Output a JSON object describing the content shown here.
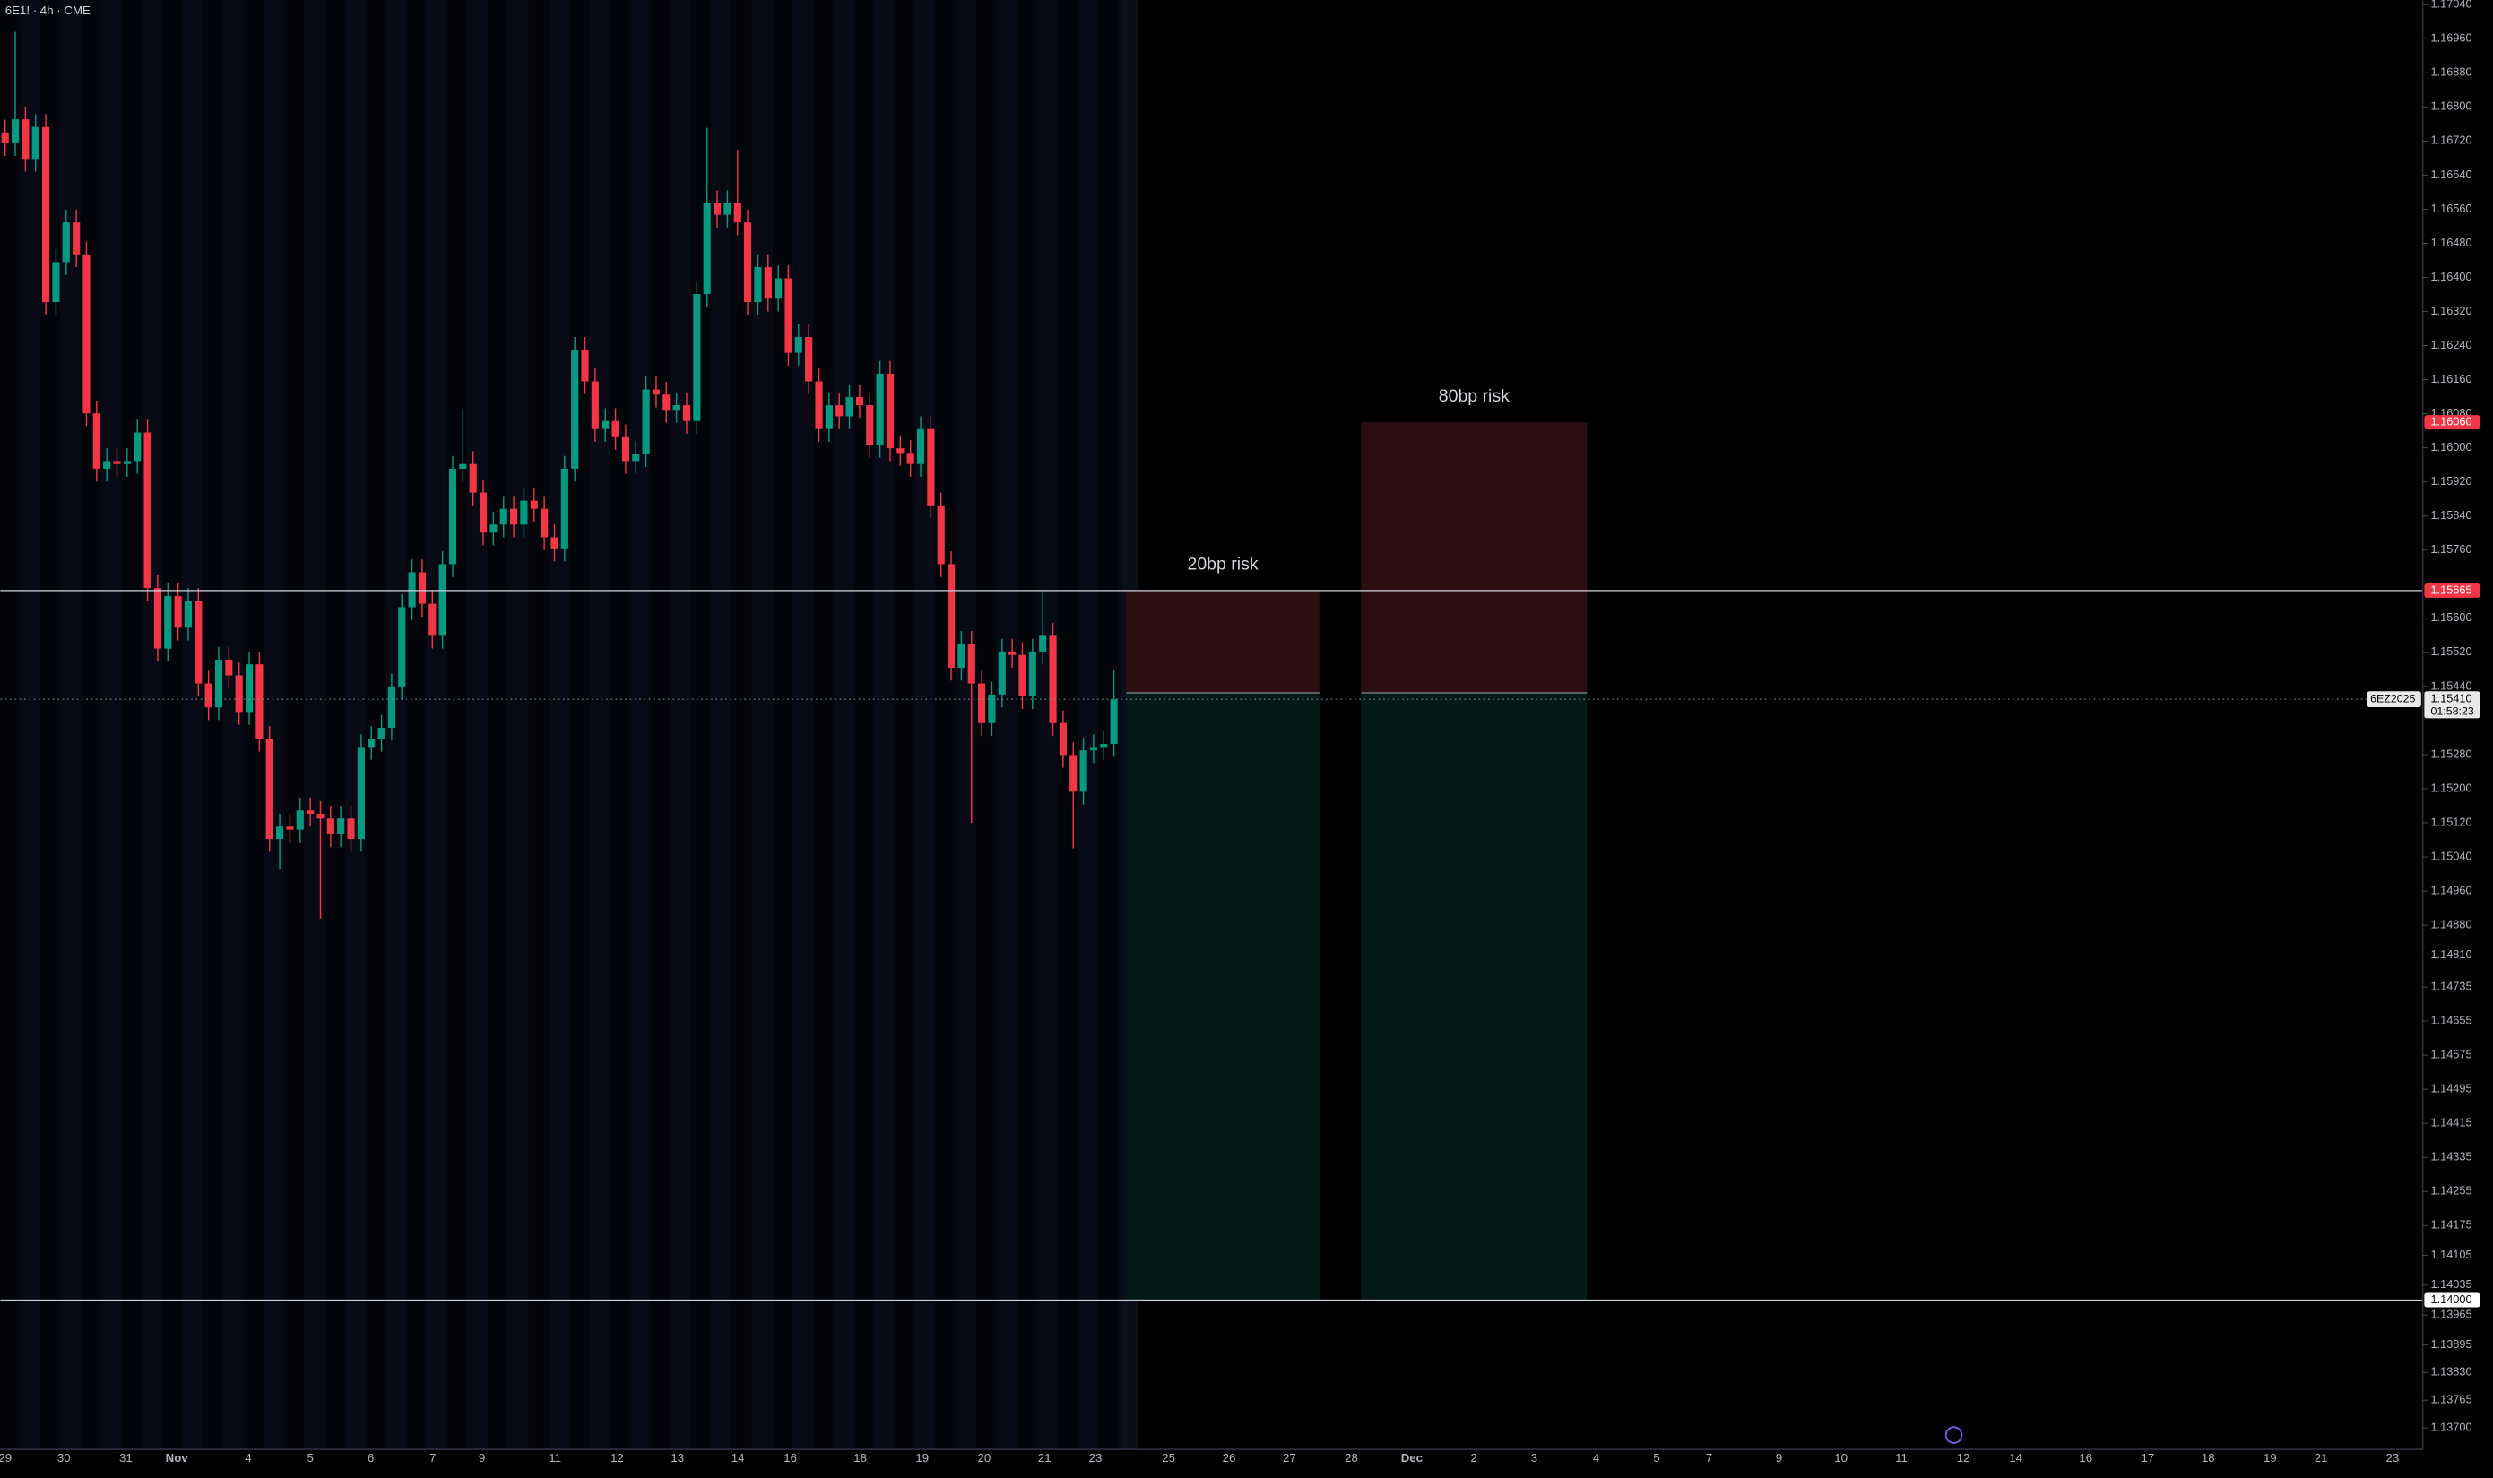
{
  "chart_data": {
    "type": "candlestick",
    "title": "6E1! · 4h · CME",
    "up_color": "#089981",
    "down_color": "#f23645",
    "ylim": [
      1.13657,
      1.17051
    ],
    "yticks": [
      {
        "value": 1.1704,
        "label": "1.17040"
      },
      {
        "value": 1.1696,
        "label": "1.16960"
      },
      {
        "value": 1.1688,
        "label": "1.16880"
      },
      {
        "value": 1.168,
        "label": "1.16800"
      },
      {
        "value": 1.1672,
        "label": "1.16720"
      },
      {
        "value": 1.1664,
        "label": "1.16640"
      },
      {
        "value": 1.1656,
        "label": "1.16560"
      },
      {
        "value": 1.1648,
        "label": "1.16480"
      },
      {
        "value": 1.164,
        "label": "1.16400"
      },
      {
        "value": 1.1632,
        "label": "1.16320"
      },
      {
        "value": 1.1624,
        "label": "1.16240"
      },
      {
        "value": 1.1616,
        "label": "1.16160"
      },
      {
        "value": 1.1608,
        "label": "1.16080"
      },
      {
        "value": 1.16,
        "label": "1.16000"
      },
      {
        "value": 1.1592,
        "label": "1.15920"
      },
      {
        "value": 1.1584,
        "label": "1.15840"
      },
      {
        "value": 1.1576,
        "label": "1.15760"
      },
      {
        "value": 1.156,
        "label": "1.15600"
      },
      {
        "value": 1.1552,
        "label": "1.15520"
      },
      {
        "value": 1.1544,
        "label": "1.15440"
      },
      {
        "value": 1.1528,
        "label": "1.15280"
      },
      {
        "value": 1.152,
        "label": "1.15200"
      },
      {
        "value": 1.1512,
        "label": "1.15120"
      },
      {
        "value": 1.1504,
        "label": "1.15040"
      },
      {
        "value": 1.1496,
        "label": "1.14960"
      },
      {
        "value": 1.1488,
        "label": "1.14880"
      },
      {
        "value": 1.1481,
        "label": "1.14810"
      },
      {
        "value": 1.14735,
        "label": "1.14735"
      },
      {
        "value": 1.14655,
        "label": "1.14655"
      },
      {
        "value": 1.14575,
        "label": "1.14575"
      },
      {
        "value": 1.14495,
        "label": "1.14495"
      },
      {
        "value": 1.14415,
        "label": "1.14415"
      },
      {
        "value": 1.14335,
        "label": "1.14335"
      },
      {
        "value": 1.14255,
        "label": "1.14255"
      },
      {
        "value": 1.14175,
        "label": "1.14175"
      },
      {
        "value": 1.14105,
        "label": "1.14105"
      },
      {
        "value": 1.14035,
        "label": "1.14035"
      },
      {
        "value": 1.13965,
        "label": "1.13965"
      },
      {
        "value": 1.13895,
        "label": "1.13895"
      },
      {
        "value": 1.1383,
        "label": "1.13830"
      },
      {
        "value": 1.13765,
        "label": "1.13765"
      },
      {
        "value": 1.137,
        "label": "1.13700"
      }
    ],
    "x_labels": [
      "29",
      "30",
      "31",
      "Nov",
      "4",
      "5",
      "6",
      "7",
      "9",
      "11",
      "12",
      "13",
      "14",
      "16",
      "18",
      "19",
      "20",
      "21",
      "23",
      "25",
      "26",
      "27",
      "28",
      "Dec",
      "2",
      "3",
      "4",
      "5",
      "7",
      "9",
      "10",
      "11",
      "12",
      "14",
      "16",
      "17",
      "18",
      "19",
      "21",
      "23"
    ],
    "candles": [
      [
        1.1674,
        1.1677,
        1.16685,
        1.16715
      ],
      [
        1.16715,
        1.16976,
        1.16685,
        1.16771
      ],
      [
        1.16771,
        1.16801,
        1.16648,
        1.16678
      ],
      [
        1.16678,
        1.16783,
        1.16648,
        1.16753
      ],
      [
        1.16753,
        1.16783,
        1.16312,
        1.16342
      ],
      [
        1.16342,
        1.16466,
        1.16312,
        1.16436
      ],
      [
        1.16436,
        1.16559,
        1.16406,
        1.16529
      ],
      [
        1.16529,
        1.16559,
        1.16424,
        1.16454
      ],
      [
        1.16454,
        1.16484,
        1.16051,
        1.16081
      ],
      [
        1.16081,
        1.16111,
        1.15921,
        1.15951
      ],
      [
        1.15951,
        1.15999,
        1.15921,
        1.15969
      ],
      [
        1.15969,
        1.15999,
        1.15932,
        1.15962
      ],
      [
        1.15962,
        1.15999,
        1.15932,
        1.15969
      ],
      [
        1.15969,
        1.16066,
        1.15939,
        1.16036
      ],
      [
        1.16036,
        1.16066,
        1.15641,
        1.15671
      ],
      [
        1.15671,
        1.15701,
        1.15499,
        1.15529
      ],
      [
        1.15529,
        1.15682,
        1.15499,
        1.15652
      ],
      [
        1.15652,
        1.15682,
        1.15548,
        1.15578
      ],
      [
        1.15578,
        1.15671,
        1.15548,
        1.15641
      ],
      [
        1.15641,
        1.15671,
        1.15417,
        1.15447
      ],
      [
        1.15447,
        1.15477,
        1.15361,
        1.15391
      ],
      [
        1.15391,
        1.15533,
        1.15361,
        1.15503
      ],
      [
        1.15503,
        1.15533,
        1.15436,
        1.15466
      ],
      [
        1.15466,
        1.15496,
        1.1535,
        1.1538
      ],
      [
        1.1538,
        1.15522,
        1.1535,
        1.15492
      ],
      [
        1.15492,
        1.15522,
        1.15287,
        1.15317
      ],
      [
        1.15317,
        1.15347,
        1.15052,
        1.15082
      ],
      [
        1.15082,
        1.15141,
        1.15012,
        1.15111
      ],
      [
        1.15111,
        1.15141,
        1.15074,
        1.15104
      ],
      [
        1.15104,
        1.15179,
        1.15074,
        1.15149
      ],
      [
        1.15149,
        1.15179,
        1.15111,
        1.15141
      ],
      [
        1.15141,
        1.15171,
        1.14895,
        1.1513
      ],
      [
        1.1513,
        1.1516,
        1.15063,
        1.15093
      ],
      [
        1.15093,
        1.1516,
        1.15063,
        1.1513
      ],
      [
        1.1513,
        1.1516,
        1.15052,
        1.15082
      ],
      [
        1.15082,
        1.15328,
        1.15052,
        1.15298
      ],
      [
        1.15298,
        1.15347,
        1.15268,
        1.15317
      ],
      [
        1.15317,
        1.15373,
        1.15287,
        1.15343
      ],
      [
        1.15343,
        1.1547,
        1.15313,
        1.1544
      ],
      [
        1.1544,
        1.15656,
        1.1541,
        1.15626
      ],
      [
        1.15626,
        1.15738,
        1.15596,
        1.15708
      ],
      [
        1.15708,
        1.15738,
        1.15604,
        1.15634
      ],
      [
        1.15634,
        1.15664,
        1.15529,
        1.15559
      ],
      [
        1.15559,
        1.15757,
        1.15529,
        1.15727
      ],
      [
        1.15727,
        1.15981,
        1.15697,
        1.15951
      ],
      [
        1.15951,
        1.16092,
        1.15921,
        1.15962
      ],
      [
        1.15962,
        1.15992,
        1.15865,
        1.15895
      ],
      [
        1.15895,
        1.15925,
        1.15771,
        1.15801
      ],
      [
        1.15801,
        1.1585,
        1.15771,
        1.1582
      ],
      [
        1.1582,
        1.15887,
        1.1579,
        1.15857
      ],
      [
        1.15857,
        1.15887,
        1.1579,
        1.1582
      ],
      [
        1.1582,
        1.15906,
        1.1579,
        1.15876
      ],
      [
        1.15876,
        1.15906,
        1.15827,
        1.15857
      ],
      [
        1.15857,
        1.15887,
        1.1576,
        1.1579
      ],
      [
        1.1579,
        1.1582,
        1.15734,
        1.15764
      ],
      [
        1.15764,
        1.15981,
        1.15734,
        1.15951
      ],
      [
        1.15951,
        1.1626,
        1.15921,
        1.1623
      ],
      [
        1.1623,
        1.1626,
        1.16126,
        1.16156
      ],
      [
        1.16156,
        1.16186,
        1.16014,
        1.16044
      ],
      [
        1.16044,
        1.16093,
        1.16014,
        1.16063
      ],
      [
        1.16063,
        1.16093,
        1.15995,
        1.16025
      ],
      [
        1.16025,
        1.16055,
        1.15939,
        1.15969
      ],
      [
        1.15969,
        1.16015,
        1.15939,
        1.15985
      ],
      [
        1.15985,
        1.16167,
        1.15955,
        1.16137
      ],
      [
        1.16137,
        1.16167,
        1.16095,
        1.16125
      ],
      [
        1.16125,
        1.16155,
        1.16059,
        1.16089
      ],
      [
        1.16089,
        1.1613,
        1.16059,
        1.161
      ],
      [
        1.161,
        1.1613,
        1.16033,
        1.16063
      ],
      [
        1.16063,
        1.16391,
        1.16033,
        1.16361
      ],
      [
        1.16361,
        1.16751,
        1.16331,
        1.16574
      ],
      [
        1.16574,
        1.16604,
        1.16517,
        1.16547
      ],
      [
        1.16547,
        1.16604,
        1.16517,
        1.16574
      ],
      [
        1.16574,
        1.16699,
        1.16499,
        1.16529
      ],
      [
        1.16529,
        1.16559,
        1.16312,
        1.16342
      ],
      [
        1.16342,
        1.16454,
        1.16312,
        1.16424
      ],
      [
        1.16424,
        1.16454,
        1.1632,
        1.1635
      ],
      [
        1.1635,
        1.16428,
        1.1632,
        1.16398
      ],
      [
        1.16398,
        1.16428,
        1.16193,
        1.16223
      ],
      [
        1.16223,
        1.1629,
        1.16193,
        1.1626
      ],
      [
        1.1626,
        1.1629,
        1.16126,
        1.16156
      ],
      [
        1.16156,
        1.16186,
        1.16014,
        1.16044
      ],
      [
        1.16044,
        1.1613,
        1.16014,
        1.161
      ],
      [
        1.161,
        1.1613,
        1.16044,
        1.16074
      ],
      [
        1.16074,
        1.16149,
        1.16044,
        1.16119
      ],
      [
        1.16119,
        1.16149,
        1.1607,
        1.161
      ],
      [
        1.161,
        1.1613,
        1.15977,
        1.16007
      ],
      [
        1.16007,
        1.16204,
        1.15977,
        1.16174
      ],
      [
        1.16174,
        1.16204,
        1.15969,
        1.15999
      ],
      [
        1.15999,
        1.16029,
        1.15958,
        1.15988
      ],
      [
        1.15988,
        1.16018,
        1.15932,
        1.15962
      ],
      [
        1.15962,
        1.16074,
        1.15932,
        1.16044
      ],
      [
        1.16044,
        1.16074,
        1.15835,
        1.15865
      ],
      [
        1.15865,
        1.15895,
        1.15697,
        1.15727
      ],
      [
        1.15727,
        1.15757,
        1.15454,
        1.15484
      ],
      [
        1.15484,
        1.1557,
        1.15454,
        1.1554
      ],
      [
        1.1554,
        1.1557,
        1.1512,
        1.15447
      ],
      [
        1.15447,
        1.15477,
        1.15324,
        1.15354
      ],
      [
        1.15354,
        1.15451,
        1.15324,
        1.15421
      ],
      [
        1.15421,
        1.15552,
        1.15391,
        1.15522
      ],
      [
        1.15522,
        1.15552,
        1.15484,
        1.15514
      ],
      [
        1.15514,
        1.15544,
        1.15387,
        1.15417
      ],
      [
        1.15417,
        1.15552,
        1.15387,
        1.15522
      ],
      [
        1.15522,
        1.15664,
        1.15492,
        1.15559
      ],
      [
        1.15559,
        1.15589,
        1.15324,
        1.15354
      ],
      [
        1.15354,
        1.15384,
        1.15249,
        1.15279
      ],
      [
        1.15279,
        1.15309,
        1.1506,
        1.15193
      ],
      [
        1.15193,
        1.1532,
        1.15163,
        1.1529
      ],
      [
        1.1529,
        1.15328,
        1.1526,
        1.15298
      ],
      [
        1.15298,
        1.15335,
        1.15268,
        1.15305
      ],
      [
        1.15305,
        1.1548,
        1.15275,
        1.1541
      ]
    ],
    "positions": [
      {
        "label": "20bp risk",
        "start_bar": 110.2,
        "end_bar": 129.2,
        "stop": 1.15665,
        "entry": 1.15425,
        "target": 1.14
      },
      {
        "label": "80bp risk",
        "start_bar": 133.3,
        "end_bar": 155.5,
        "stop": 1.1606,
        "entry": 1.15425,
        "target": 1.14
      }
    ],
    "horizontal_lines": [
      1.15665,
      1.14
    ],
    "price_tags": [
      {
        "value": 1.1606,
        "label": "1.16060",
        "color": "#f23645"
      },
      {
        "value": 1.15665,
        "label": "1.15665",
        "color": "#f23645"
      },
      {
        "value": 1.14,
        "label": "1.14000",
        "color": "#ffffff"
      }
    ],
    "last_price": {
      "value": 1.1541,
      "label": "1.15410",
      "countdown": "01:58:23",
      "symbol": "6EZ2025"
    }
  }
}
